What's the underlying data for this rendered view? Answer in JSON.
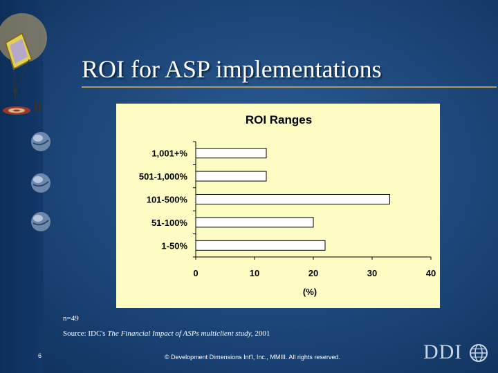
{
  "slide": {
    "title": "ROI for ASP implementations",
    "note": "n=49",
    "source_prefix": "Source: IDC's ",
    "source_title": "The Financial Impact of ASPs multiclient study,",
    "source_year": " 2001",
    "page_number": "6",
    "footer": "© Development Dimensions Int'l, Inc., MMIII.  All rights reserved.",
    "logo_text": "DDI",
    "colors": {
      "background": "#1f4a7e",
      "chart_background": "#fdfdc3",
      "bar_fill": "#ffffff",
      "rule": "#b59a52"
    }
  },
  "chart_data": {
    "type": "bar",
    "orientation": "horizontal",
    "title": "ROI Ranges",
    "xlabel": "(%)",
    "ylabel": "",
    "categories": [
      "1,001+%",
      "501-1,000%",
      "101-500%",
      "51-100%",
      "1-50%"
    ],
    "values": [
      12,
      12,
      33,
      20,
      22
    ],
    "xlim": [
      0,
      40
    ],
    "xticks": [
      0,
      10,
      20,
      30,
      40
    ],
    "grid": false,
    "legend": "none"
  }
}
